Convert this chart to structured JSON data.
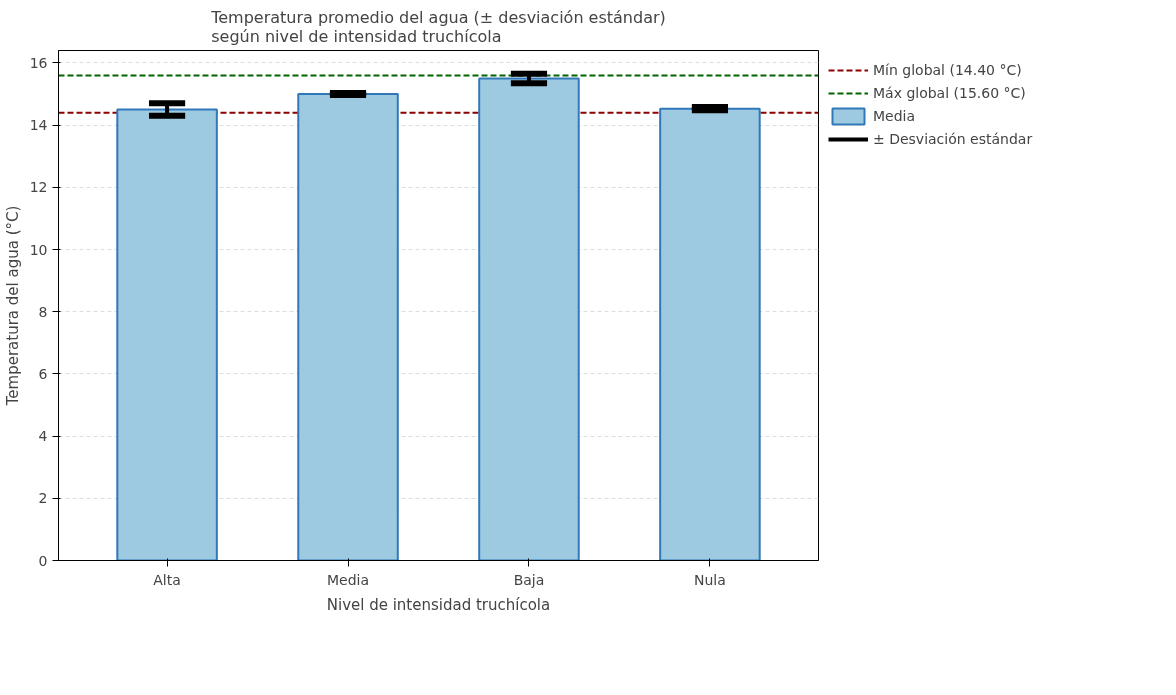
{
  "chart_data": {
    "type": "bar",
    "title": "Temperatura promedio del agua (± desviación estándar)\nsegún nivel de intensidad truchícola",
    "xlabel": "Nivel de intensidad truchícola",
    "ylabel": "Temperatura del agua (°C)",
    "categories": [
      "Alta",
      "Media",
      "Baja",
      "Nula"
    ],
    "series": [
      {
        "name": "Media",
        "color": "#9ecae1",
        "values": [
          14.5,
          15.0,
          15.5,
          14.53
        ],
        "errors": [
          0.2,
          0.03,
          0.15,
          0.05
        ]
      }
    ],
    "ylim": [
      0,
      16.4
    ],
    "yticks": [
      0,
      2,
      4,
      6,
      8,
      10,
      12,
      14,
      16
    ],
    "grid": "y",
    "legend": "right",
    "ref_lines": [
      {
        "axis": "y",
        "value": 14.4,
        "label": "Mín global (14.40 °C)",
        "color": "#8b0000",
        "line_style": "dashed"
      },
      {
        "axis": "y",
        "value": 15.6,
        "label": "Máx global (15.60 °C)",
        "color": "#006400",
        "line_style": "dashed"
      }
    ],
    "annotations": [
      "± Desviación estándar"
    ]
  }
}
